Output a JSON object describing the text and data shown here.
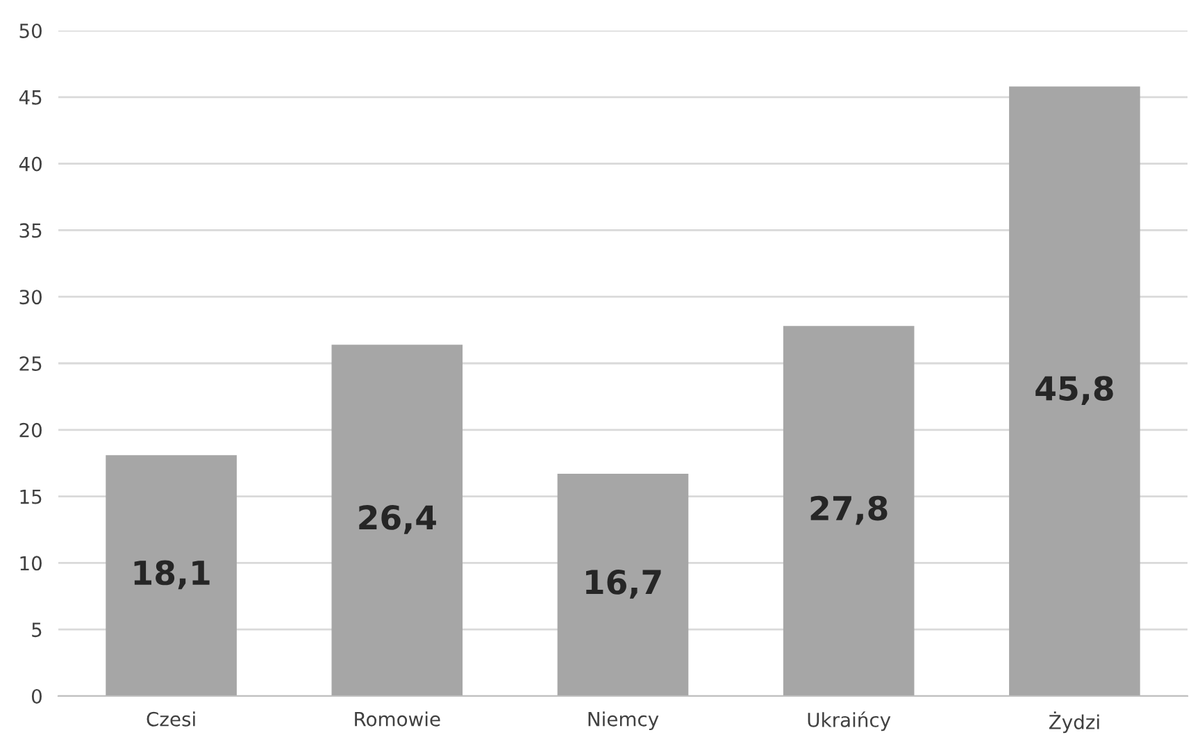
{
  "chart_data": {
    "type": "bar",
    "categories": [
      "Czesi",
      "Romowie",
      "Niemcy",
      "Ukraińcy",
      "Żydzi"
    ],
    "values": [
      18.1,
      26.4,
      16.7,
      27.8,
      45.8
    ],
    "value_labels": [
      "18,1",
      "26,4",
      "16,7",
      "27,8",
      "45,8"
    ],
    "color": "#a6a6a6",
    "ylim": [
      0,
      50
    ],
    "yticks": [
      0,
      5,
      10,
      15,
      20,
      25,
      30,
      35,
      40,
      45,
      50
    ],
    "grid": "y",
    "legend": false
  }
}
